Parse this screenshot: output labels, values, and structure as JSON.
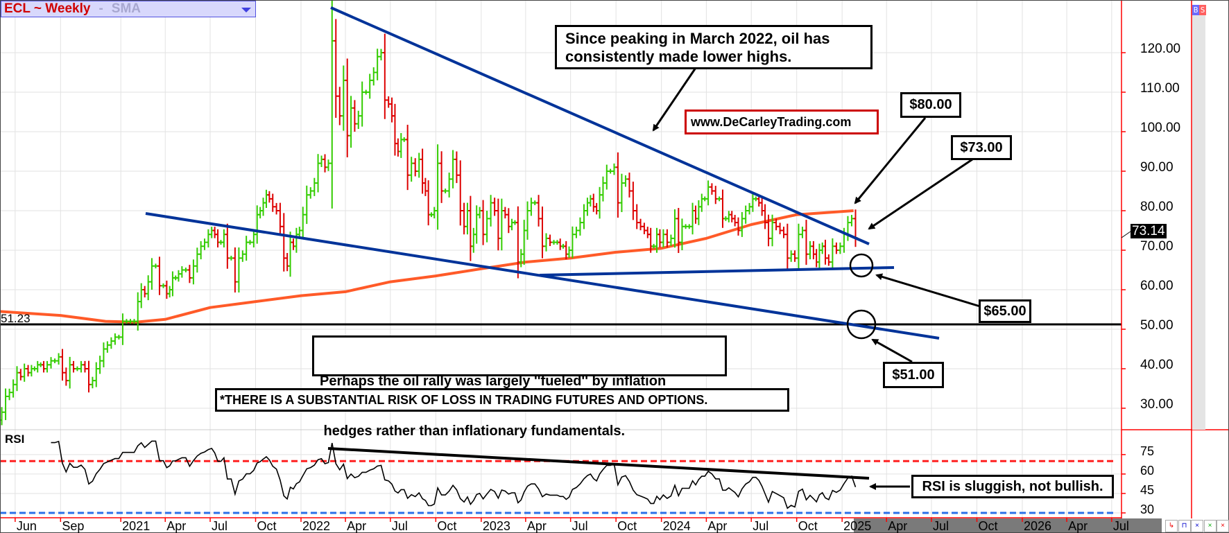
{
  "title_bar": {
    "symbol": "ECL ~ Weekly",
    "separator": "-",
    "study": "SMA",
    "dropdown_icon": "triangle-down"
  },
  "side_buttons": {
    "buy": "B",
    "sell": "S"
  },
  "nav_buttons": [
    "red-step",
    "blue-step",
    "blue-cross",
    "green-cross",
    "red-cross"
  ],
  "chart_data": {
    "type": "ohlc-bar",
    "frequency": "weekly",
    "price_axis": {
      "ticks": [
        "120.00",
        "110.00",
        "100.00",
        "90.00",
        "80.00",
        "70.00",
        "60.00",
        "50.00",
        "40.00",
        "30.00"
      ],
      "tick_values": [
        120,
        110,
        100,
        90,
        80,
        70,
        60,
        50,
        40,
        30
      ],
      "range": [
        25,
        132
      ]
    },
    "last_price": "73.14",
    "reference_line": {
      "label": "51.23",
      "value": 51.23
    },
    "date_axis": {
      "ticks": [
        {
          "label": "Jun",
          "date": "2020-06-01"
        },
        {
          "label": "Sep",
          "date": "2020-09-01"
        },
        {
          "label": "2021",
          "date": "2021-01-01"
        },
        {
          "label": "Apr",
          "date": "2021-04-01"
        },
        {
          "label": "Jul",
          "date": "2021-07-01"
        },
        {
          "label": "Oct",
          "date": "2021-10-01"
        },
        {
          "label": "2022",
          "date": "2022-01-01"
        },
        {
          "label": "Apr",
          "date": "2022-04-01"
        },
        {
          "label": "Jul",
          "date": "2022-07-01"
        },
        {
          "label": "Oct",
          "date": "2022-10-01"
        },
        {
          "label": "2023",
          "date": "2023-01-01"
        },
        {
          "label": "Apr",
          "date": "2023-04-01"
        },
        {
          "label": "Jul",
          "date": "2023-07-01"
        },
        {
          "label": "Oct",
          "date": "2023-10-01"
        },
        {
          "label": "2024",
          "date": "2024-01-01"
        },
        {
          "label": "Apr",
          "date": "2024-04-01"
        },
        {
          "label": "Jul",
          "date": "2024-07-01"
        },
        {
          "label": "Oct",
          "date": "2024-10-01"
        },
        {
          "label": "2025",
          "date": "2025-01-01"
        },
        {
          "label": "Apr",
          "date": "2025-04-01"
        },
        {
          "label": "Jul",
          "date": "2025-07-01"
        },
        {
          "label": "Oct",
          "date": "2025-10-01"
        },
        {
          "label": "2026",
          "date": "2026-01-01"
        },
        {
          "label": "Apr",
          "date": "2026-04-01"
        },
        {
          "label": "Jul",
          "date": "2026-07-01"
        }
      ]
    },
    "weekly_closes": [
      {
        "month": "2020-05",
        "closes": [
          29,
          33,
          34,
          36
        ]
      },
      {
        "month": "2020-06",
        "closes": [
          39,
          38,
          40,
          39
        ]
      },
      {
        "month": "2020-07",
        "closes": [
          40,
          40,
          41,
          41,
          40
        ]
      },
      {
        "month": "2020-08",
        "closes": [
          41,
          42,
          42,
          43
        ]
      },
      {
        "month": "2020-09",
        "closes": [
          39,
          37,
          41,
          40
        ]
      },
      {
        "month": "2020-10",
        "closes": [
          40,
          41,
          40,
          36
        ]
      },
      {
        "month": "2020-11",
        "closes": [
          37,
          40,
          42,
          45
        ]
      },
      {
        "month": "2020-12",
        "closes": [
          46,
          47,
          48,
          48
        ]
      },
      {
        "month": "2021-01",
        "closes": [
          52,
          52,
          52,
          52
        ]
      },
      {
        "month": "2021-02",
        "closes": [
          57,
          60,
          59,
          62
        ]
      },
      {
        "month": "2021-03",
        "closes": [
          66,
          66,
          61,
          61
        ]
      },
      {
        "month": "2021-04",
        "closes": [
          59,
          60,
          63,
          63,
          64
        ]
      },
      {
        "month": "2021-05",
        "closes": [
          65,
          65,
          63,
          66
        ]
      },
      {
        "month": "2021-06",
        "closes": [
          69,
          71,
          72,
          74
        ]
      },
      {
        "month": "2021-07",
        "closes": [
          75,
          74,
          72,
          72,
          74
        ]
      },
      {
        "month": "2021-08",
        "closes": [
          68,
          68,
          62,
          68
        ]
      },
      {
        "month": "2021-09",
        "closes": [
          69,
          72,
          72,
          74
        ]
      },
      {
        "month": "2021-10",
        "closes": [
          79,
          80,
          82,
          84,
          83
        ]
      },
      {
        "month": "2021-11",
        "closes": [
          81,
          80,
          76,
          68
        ]
      },
      {
        "month": "2021-12",
        "closes": [
          66,
          72,
          71,
          74,
          75
        ]
      },
      {
        "month": "2022-01",
        "closes": [
          79,
          84,
          85,
          87
        ]
      },
      {
        "month": "2022-02",
        "closes": [
          92,
          93,
          91,
          92
        ]
      },
      {
        "month": "2022-03",
        "closes": [
          123,
          109,
          104,
          113
        ]
      },
      {
        "month": "2022-04",
        "closes": [
          99,
          106,
          102,
          104
        ]
      },
      {
        "month": "2022-05",
        "closes": [
          110,
          110,
          113,
          115
        ]
      },
      {
        "month": "2022-06",
        "closes": [
          119,
          120,
          108,
          107
        ]
      },
      {
        "month": "2022-07",
        "closes": [
          104,
          97,
          95,
          98,
          98
        ]
      },
      {
        "month": "2022-08",
        "closes": [
          89,
          92,
          90,
          93
        ]
      },
      {
        "month": "2022-09",
        "closes": [
          87,
          85,
          79,
          79,
          80
        ]
      },
      {
        "month": "2022-10",
        "closes": [
          92,
          85,
          85,
          88
        ]
      },
      {
        "month": "2022-11",
        "closes": [
          93,
          89,
          80,
          76
        ]
      },
      {
        "month": "2022-12",
        "closes": [
          80,
          71,
          74,
          79,
          80
        ]
      },
      {
        "month": "2023-01",
        "closes": [
          74,
          78,
          82,
          80
        ]
      },
      {
        "month": "2023-02",
        "closes": [
          73,
          80,
          79,
          76
        ]
      },
      {
        "month": "2023-03",
        "closes": [
          77,
          77,
          67,
          69,
          75
        ]
      },
      {
        "month": "2023-04",
        "closes": [
          80,
          82,
          82,
          78
        ]
      },
      {
        "month": "2023-05",
        "closes": [
          71,
          73,
          72,
          72
        ]
      },
      {
        "month": "2023-06",
        "closes": [
          72,
          71,
          71,
          69,
          70
        ]
      },
      {
        "month": "2023-07",
        "closes": [
          74,
          75,
          77,
          80
        ]
      },
      {
        "month": "2023-08",
        "closes": [
          82,
          83,
          81,
          80,
          84
        ]
      },
      {
        "month": "2023-09",
        "closes": [
          87,
          90,
          90,
          91
        ]
      },
      {
        "month": "2023-10",
        "closes": [
          82,
          87,
          88,
          85
        ]
      },
      {
        "month": "2023-11",
        "closes": [
          80,
          77,
          76,
          75
        ]
      },
      {
        "month": "2023-12",
        "closes": [
          74,
          71,
          71,
          74,
          72
        ]
      },
      {
        "month": "2024-01",
        "closes": [
          74,
          72,
          73,
          78
        ]
      },
      {
        "month": "2024-02",
        "closes": [
          72,
          76,
          76,
          76
        ]
      },
      {
        "month": "2024-03",
        "closes": [
          80,
          78,
          81,
          83,
          83
        ]
      },
      {
        "month": "2024-04",
        "closes": [
          86,
          85,
          83,
          83
        ]
      },
      {
        "month": "2024-05",
        "closes": [
          78,
          78,
          79,
          78,
          77
        ]
      },
      {
        "month": "2024-06",
        "closes": [
          75,
          78,
          80,
          81
        ]
      },
      {
        "month": "2024-07",
        "closes": [
          83,
          83,
          82,
          80,
          77
        ]
      },
      {
        "month": "2024-08",
        "closes": [
          73,
          77,
          76,
          75
        ]
      },
      {
        "month": "2024-09",
        "closes": [
          74,
          68,
          69,
          68
        ]
      },
      {
        "month": "2024-10",
        "closes": [
          74,
          75,
          69,
          71
        ]
      },
      {
        "month": "2024-11",
        "closes": [
          69,
          67,
          70,
          71,
          68
        ]
      },
      {
        "month": "2024-12",
        "closes": [
          67,
          71,
          70,
          71
        ]
      },
      {
        "month": "2025-01",
        "closes": [
          74,
          77,
          78,
          73.14
        ]
      }
    ],
    "sma": [
      {
        "date": "2020-05-01",
        "value": 54.5
      },
      {
        "date": "2020-09-01",
        "value": 53.5
      },
      {
        "date": "2020-12-01",
        "value": 52
      },
      {
        "date": "2021-02-01",
        "value": 51.8
      },
      {
        "date": "2021-04-01",
        "value": 52.5
      },
      {
        "date": "2021-07-01",
        "value": 55.5
      },
      {
        "date": "2021-10-01",
        "value": 57
      },
      {
        "date": "2022-01-01",
        "value": 58.5
      },
      {
        "date": "2022-04-01",
        "value": 59.5
      },
      {
        "date": "2022-07-01",
        "value": 62
      },
      {
        "date": "2022-10-01",
        "value": 63.5
      },
      {
        "date": "2023-01-01",
        "value": 65.3
      },
      {
        "date": "2023-04-01",
        "value": 67
      },
      {
        "date": "2023-07-01",
        "value": 68
      },
      {
        "date": "2023-10-01",
        "value": 69.5
      },
      {
        "date": "2024-01-01",
        "value": 70.5
      },
      {
        "date": "2024-04-01",
        "value": 73
      },
      {
        "date": "2024-07-01",
        "value": 76.5
      },
      {
        "date": "2024-10-01",
        "value": 79
      },
      {
        "date": "2025-01-24",
        "value": 80
      }
    ],
    "rsi": {
      "label": "RSI",
      "ticks": [
        "75",
        "60",
        "45",
        "30"
      ],
      "tick_values": [
        75,
        60,
        45,
        30
      ],
      "upper_band": 70,
      "lower_band": 30
    },
    "colors": {
      "up": "#33cc00",
      "down": "#dd0000",
      "sma": "#ff5a28",
      "trendline": "#003399",
      "grid": "#e2e2e2",
      "axis": "#ff0000",
      "upper_band": "#ff2020",
      "lower_band": "#2a6fe8"
    }
  },
  "annotations": {
    "lower_highs": [
      "Since peaking in March 2022, oil has",
      "consistently made lower highs."
    ],
    "website": "www.DeCarleyTrading.com",
    "level_80": "$80.00",
    "level_73": "$73.00",
    "level_65": "$65.00",
    "level_51": "$51.00",
    "inflation": [
      "Perhaps the oil rally was largely ''fueled'' by inflation",
      " hedges rather than inflationary fundamentals."
    ],
    "disclaimer": "*THERE IS A SUBSTANTIAL RISK OF LOSS IN TRADING FUTURES AND OPTIONS.",
    "rsi_note": "RSI is sluggish, not bullish."
  }
}
